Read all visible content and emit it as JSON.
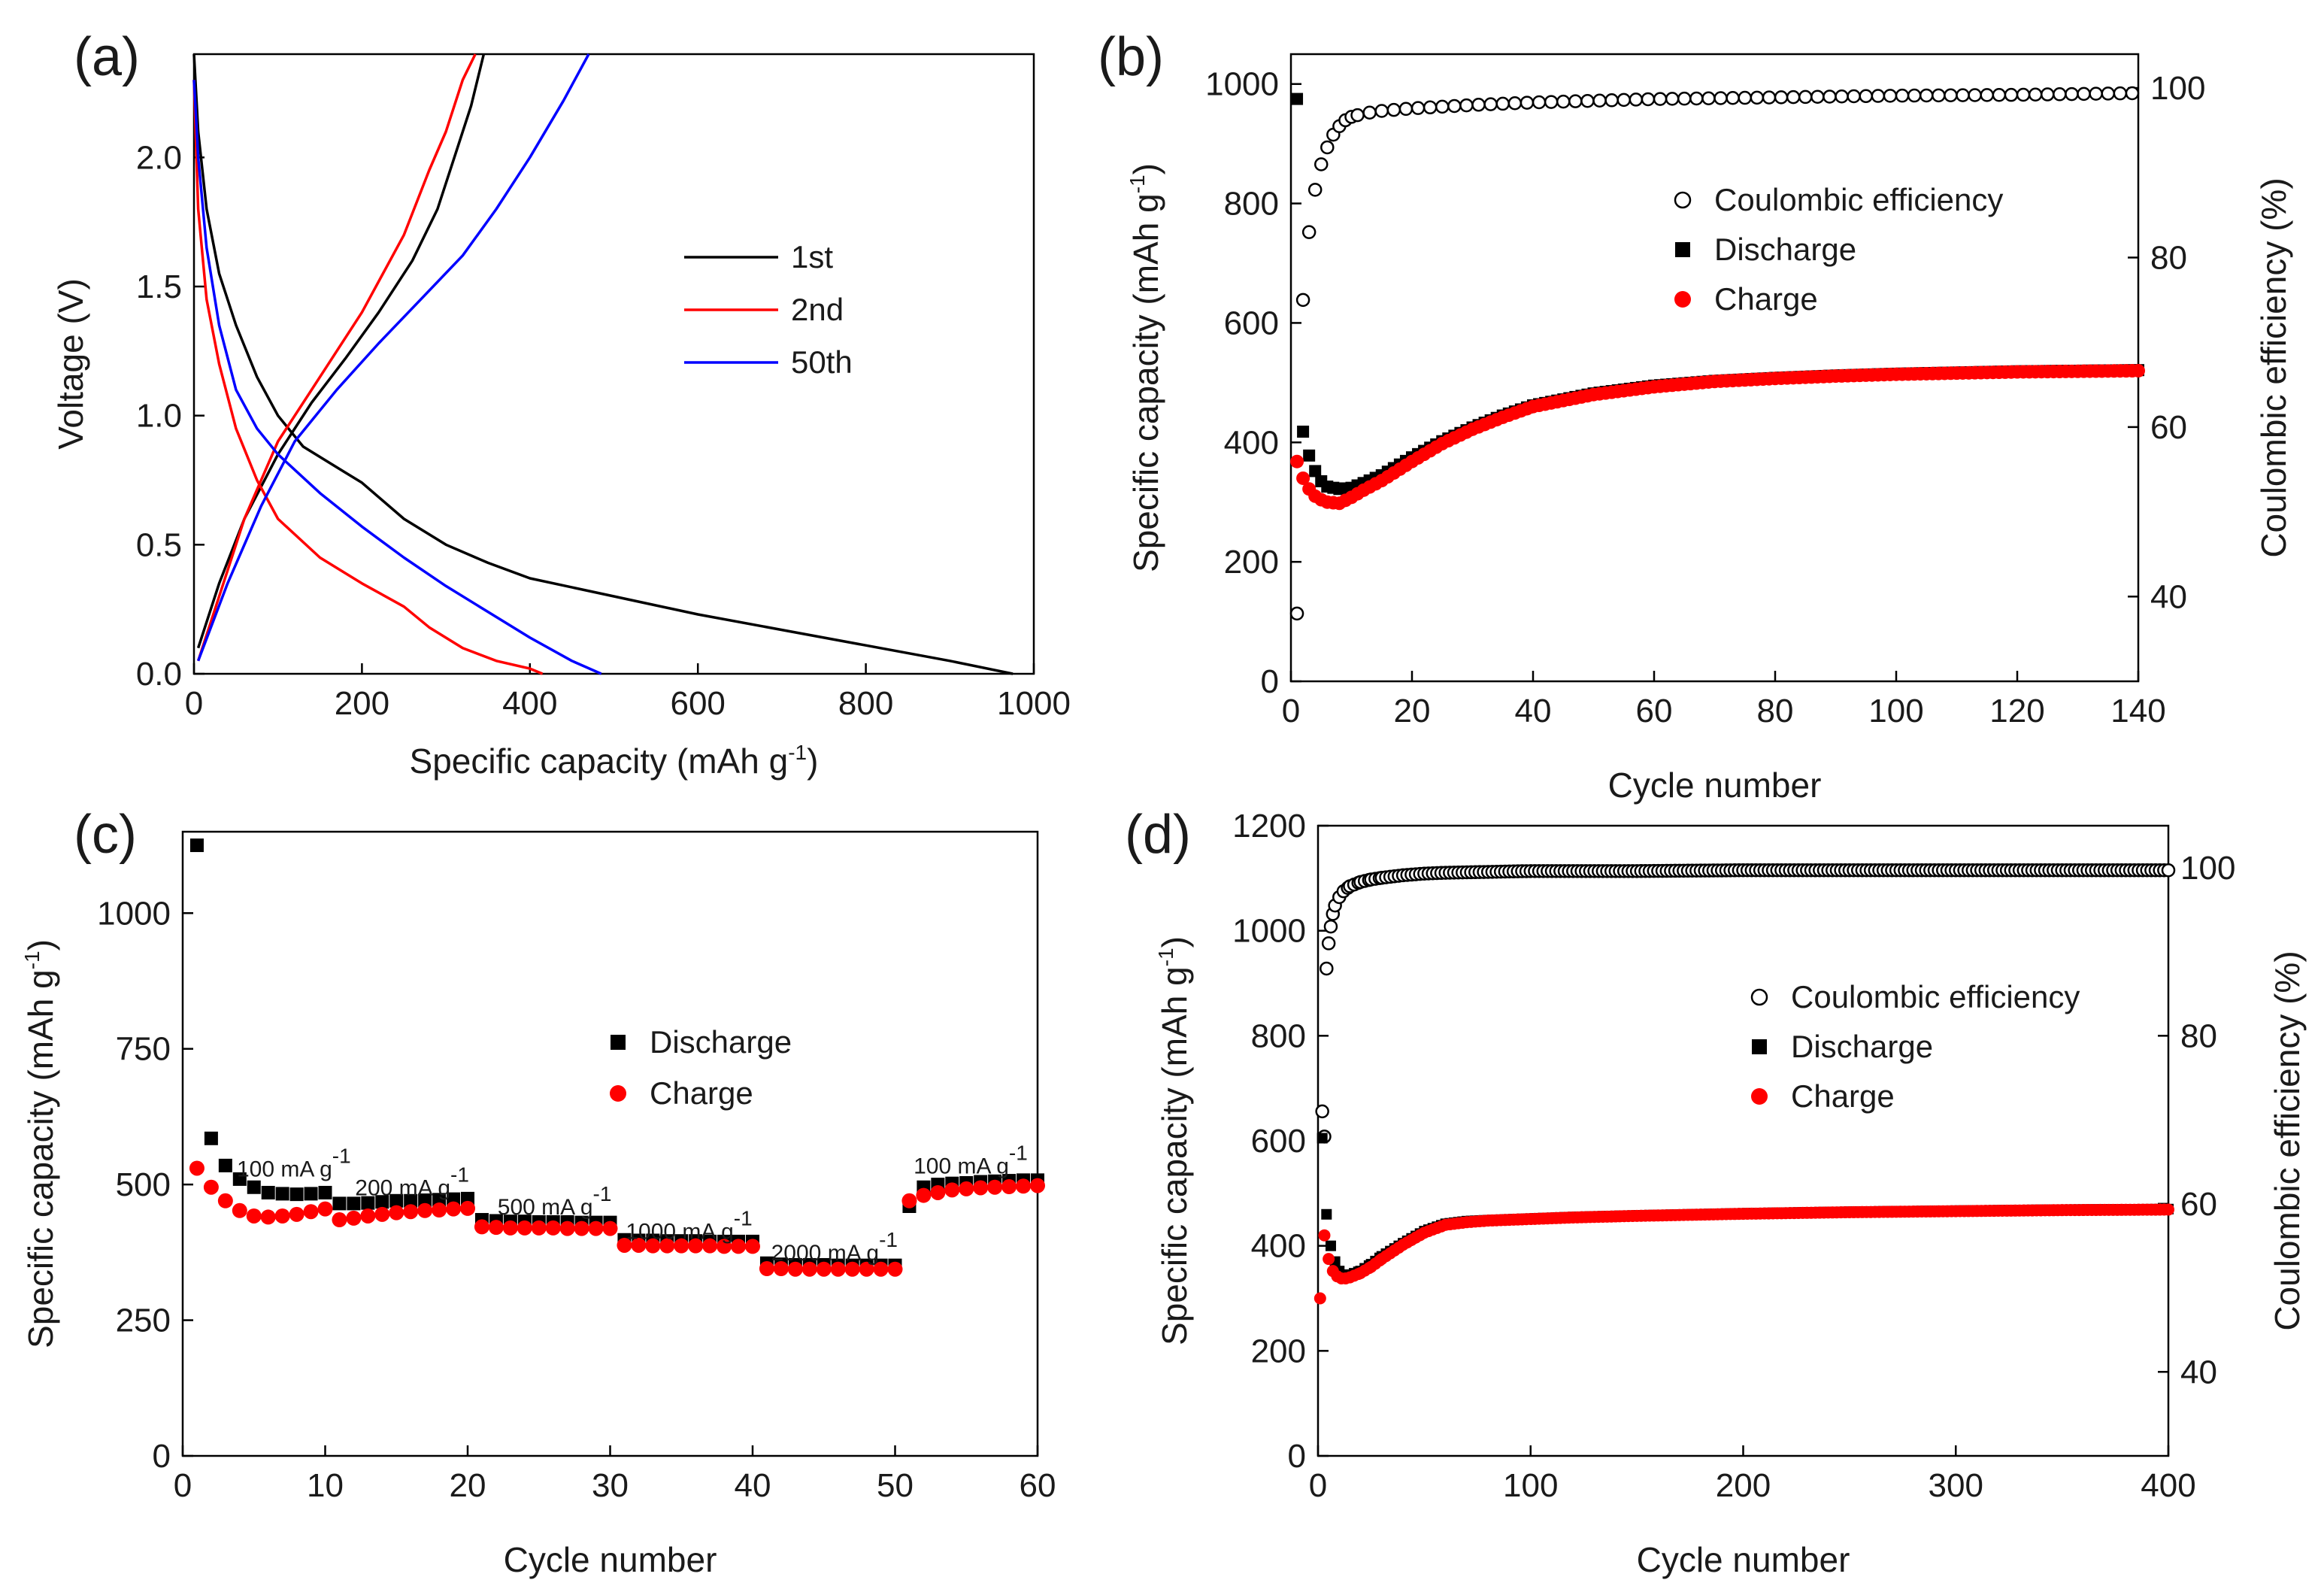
{
  "chart_data": [
    {
      "panel": "(a)",
      "type": "line",
      "xlabel": "Specific capacity (mAh g",
      "xlabel_sup": "-1",
      "xlabel_end": ")",
      "ylabel": "Voltage (V)",
      "xlim": [
        0,
        1000
      ],
      "ylim": [
        0,
        2.4
      ],
      "xticks": [
        0,
        200,
        400,
        600,
        800,
        1000
      ],
      "yticks": [
        0.0,
        0.5,
        1.0,
        1.5,
        2.0
      ],
      "ytick_labels": [
        "0.0",
        "0.5",
        "1.0",
        "1.5",
        "2.0"
      ],
      "legend_position": "center-right",
      "colors": {
        "1st": "#000000",
        "2nd": "#ff0000",
        "50th": "#0000ff"
      },
      "series": [
        {
          "name": "1st",
          "branch": "discharge",
          "color": "#000000",
          "x": [
            0,
            5,
            15,
            30,
            50,
            75,
            100,
            130,
            160,
            180,
            200,
            250,
            300,
            350,
            400,
            500,
            600,
            700,
            800,
            900,
            975
          ],
          "y": [
            2.4,
            2.1,
            1.8,
            1.55,
            1.35,
            1.15,
            1.0,
            0.88,
            0.82,
            0.78,
            0.74,
            0.6,
            0.5,
            0.43,
            0.37,
            0.3,
            0.23,
            0.17,
            0.11,
            0.05,
            0.0
          ]
        },
        {
          "name": "1st",
          "branch": "charge",
          "color": "#000000",
          "x": [
            5,
            30,
            60,
            100,
            140,
            180,
            220,
            260,
            290,
            310,
            330,
            345
          ],
          "y": [
            0.1,
            0.35,
            0.6,
            0.85,
            1.05,
            1.22,
            1.4,
            1.6,
            1.8,
            2.0,
            2.2,
            2.4
          ]
        },
        {
          "name": "2nd",
          "branch": "discharge",
          "color": "#ff0000",
          "x": [
            0,
            5,
            15,
            30,
            50,
            75,
            100,
            150,
            200,
            250,
            280,
            320,
            360,
            400,
            415
          ],
          "y": [
            2.3,
            1.8,
            1.45,
            1.2,
            0.95,
            0.75,
            0.6,
            0.45,
            0.35,
            0.26,
            0.18,
            0.1,
            0.05,
            0.02,
            0.0
          ]
        },
        {
          "name": "2nd",
          "branch": "charge",
          "color": "#ff0000",
          "x": [
            5,
            30,
            60,
            100,
            150,
            200,
            250,
            280,
            300,
            320,
            335
          ],
          "y": [
            0.05,
            0.3,
            0.6,
            0.9,
            1.15,
            1.4,
            1.7,
            1.95,
            2.1,
            2.3,
            2.4
          ]
        },
        {
          "name": "50th",
          "branch": "discharge",
          "color": "#0000ff",
          "x": [
            0,
            5,
            15,
            30,
            50,
            75,
            100,
            150,
            200,
            250,
            300,
            350,
            400,
            450,
            485
          ],
          "y": [
            2.3,
            2.0,
            1.65,
            1.35,
            1.1,
            0.95,
            0.85,
            0.7,
            0.57,
            0.45,
            0.34,
            0.24,
            0.14,
            0.05,
            0.0
          ]
        },
        {
          "name": "50th",
          "branch": "charge",
          "color": "#0000ff",
          "x": [
            5,
            40,
            80,
            120,
            170,
            220,
            270,
            320,
            360,
            400,
            440,
            470
          ],
          "y": [
            0.05,
            0.35,
            0.65,
            0.9,
            1.1,
            1.28,
            1.45,
            1.62,
            1.8,
            2.0,
            2.22,
            2.4
          ]
        }
      ]
    },
    {
      "panel": "(b)",
      "type": "scatter",
      "xlabel": "Cycle number",
      "ylabel": "Specific capacity (mAh g",
      "ylabel_sup": "-1",
      "ylabel_end": ")",
      "y2label": "Coulombic efficiency (%)",
      "xlim": [
        0,
        140
      ],
      "ylim": [
        0,
        1050
      ],
      "y2lim": [
        30,
        104
      ],
      "xticks": [
        0,
        20,
        40,
        60,
        80,
        100,
        120,
        140
      ],
      "yticks": [
        0,
        200,
        400,
        600,
        800,
        1000
      ],
      "y2ticks": [
        40,
        60,
        80,
        100
      ],
      "legend_position": "upper-right",
      "legend": [
        {
          "label": "Coulombic efficiency",
          "marker": "open-circle",
          "color": "#000000"
        },
        {
          "label": "Discharge",
          "marker": "square",
          "color": "#000000"
        },
        {
          "label": "Charge",
          "marker": "circle",
          "color": "#ff0000"
        }
      ],
      "series": [
        {
          "name": "Discharge",
          "axis": "left",
          "x": [
            1,
            2,
            3,
            4,
            5,
            6,
            8,
            10,
            12,
            15,
            20,
            25,
            30,
            35,
            40,
            50,
            60,
            70,
            80,
            90,
            100,
            110,
            120,
            130,
            140
          ],
          "y": [
            975,
            418,
            378,
            352,
            335,
            326,
            322,
            324,
            332,
            345,
            375,
            402,
            425,
            445,
            462,
            482,
            495,
            503,
            508,
            512,
            515,
            517,
            519,
            520,
            521
          ]
        },
        {
          "name": "Charge",
          "axis": "left",
          "x": [
            1,
            2,
            3,
            4,
            5,
            6,
            8,
            10,
            12,
            15,
            20,
            25,
            30,
            35,
            40,
            50,
            60,
            70,
            80,
            90,
            100,
            110,
            120,
            130,
            140
          ],
          "y": [
            368,
            340,
            322,
            310,
            304,
            300,
            298,
            308,
            320,
            336,
            368,
            398,
            422,
            442,
            460,
            480,
            493,
            502,
            507,
            511,
            514,
            516,
            518,
            519,
            520
          ]
        },
        {
          "name": "Coulombic efficiency",
          "axis": "right",
          "x": [
            1,
            2,
            3,
            4,
            5,
            6,
            7,
            8,
            9,
            10,
            12,
            15,
            20,
            25,
            30,
            40,
            50,
            60,
            80,
            100,
            120,
            140
          ],
          "y": [
            38,
            75,
            83,
            88,
            91,
            93,
            94.5,
            95.5,
            96.2,
            96.6,
            97,
            97.3,
            97.6,
            97.8,
            98,
            98.3,
            98.5,
            98.7,
            98.9,
            99.1,
            99.2,
            99.4
          ]
        }
      ]
    },
    {
      "panel": "(c)",
      "type": "scatter",
      "xlabel": "Cycle number",
      "ylabel": "Specific capacity (mAh g",
      "ylabel_sup": "-1",
      "ylabel_end": ")",
      "xlim": [
        0,
        60
      ],
      "ylim": [
        0,
        1150
      ],
      "xticks": [
        0,
        10,
        20,
        30,
        40,
        50,
        60
      ],
      "yticks": [
        0,
        250,
        500,
        750,
        1000
      ],
      "legend_position": "center",
      "legend": [
        {
          "label": "Discharge",
          "marker": "square",
          "color": "#000000"
        },
        {
          "label": "Charge",
          "marker": "circle",
          "color": "#ff0000"
        }
      ],
      "annotations": [
        {
          "text": "100 mA g",
          "sup": "-1",
          "x": 3.8,
          "y": 515
        },
        {
          "text": "200 mA g",
          "sup": "-1",
          "x": 12.1,
          "y": 480
        },
        {
          "text": "500 mA g",
          "sup": "-1",
          "x": 22.1,
          "y": 445
        },
        {
          "text": "1000 mA g",
          "sup": "-1",
          "x": 31.1,
          "y": 400
        },
        {
          "text": "2000 mA g",
          "sup": "-1",
          "x": 41.3,
          "y": 360
        },
        {
          "text": "100 mA g",
          "sup": "-1",
          "x": 51.3,
          "y": 520
        }
      ],
      "series": [
        {
          "name": "Discharge",
          "x": [
            1,
            2,
            3,
            4,
            5,
            6,
            7,
            8,
            9,
            10,
            11,
            12,
            13,
            14,
            15,
            16,
            17,
            18,
            19,
            20,
            21,
            22,
            23,
            24,
            25,
            26,
            27,
            28,
            29,
            30,
            31,
            32,
            33,
            34,
            35,
            36,
            37,
            38,
            39,
            40,
            41,
            42,
            43,
            44,
            45,
            46,
            47,
            48,
            49,
            50,
            51,
            52,
            53,
            54,
            55,
            56,
            57,
            58,
            59,
            60
          ],
          "y": [
            1125,
            585,
            535,
            510,
            495,
            485,
            483,
            482,
            483,
            485,
            465,
            465,
            466,
            468,
            470,
            470,
            471,
            472,
            473,
            474,
            435,
            433,
            432,
            432,
            431,
            431,
            431,
            430,
            430,
            430,
            398,
            397,
            397,
            396,
            396,
            396,
            395,
            395,
            395,
            395,
            355,
            353,
            352,
            352,
            352,
            351,
            351,
            351,
            351,
            351,
            460,
            495,
            500,
            502,
            503,
            505,
            506,
            507,
            508,
            508
          ]
        },
        {
          "name": "Charge",
          "x": [
            1,
            2,
            3,
            4,
            5,
            6,
            7,
            8,
            9,
            10,
            11,
            12,
            13,
            14,
            15,
            16,
            17,
            18,
            19,
            20,
            21,
            22,
            23,
            24,
            25,
            26,
            27,
            28,
            29,
            30,
            31,
            32,
            33,
            34,
            35,
            36,
            37,
            38,
            39,
            40,
            41,
            42,
            43,
            44,
            45,
            46,
            47,
            48,
            49,
            50,
            51,
            52,
            53,
            54,
            55,
            56,
            57,
            58,
            59,
            60
          ],
          "y": [
            530,
            495,
            470,
            452,
            442,
            440,
            442,
            445,
            450,
            455,
            435,
            438,
            442,
            445,
            448,
            450,
            452,
            453,
            455,
            456,
            422,
            421,
            420,
            420,
            420,
            420,
            419,
            419,
            419,
            419,
            388,
            388,
            387,
            387,
            387,
            387,
            387,
            386,
            386,
            386,
            345,
            345,
            344,
            344,
            344,
            344,
            344,
            344,
            344,
            344,
            470,
            480,
            485,
            490,
            492,
            494,
            495,
            496,
            497,
            498
          ]
        }
      ]
    },
    {
      "panel": "(d)",
      "type": "scatter",
      "xlabel": "Cycle number",
      "ylabel": "Specific capacity (mAh g",
      "ylabel_sup": "-1",
      "ylabel_end": ")",
      "y2label": "Coulombic efficiency (%)",
      "xlim": [
        0,
        400
      ],
      "ylim": [
        0,
        1200
      ],
      "y2lim": [
        30,
        105
      ],
      "xticks": [
        0,
        100,
        200,
        300,
        400
      ],
      "yticks": [
        0,
        200,
        400,
        600,
        800,
        1000,
        1200
      ],
      "y2ticks": [
        40,
        60,
        80,
        100
      ],
      "legend_position": "center-right",
      "legend": [
        {
          "label": "Coulombic efficiency",
          "marker": "open-circle",
          "color": "#000000"
        },
        {
          "label": "Discharge",
          "marker": "square",
          "color": "#000000"
        },
        {
          "label": "Charge",
          "marker": "circle",
          "color": "#ff0000"
        }
      ],
      "series": [
        {
          "name": "Discharge",
          "axis": "left",
          "x": [
            2,
            4,
            6,
            8,
            10,
            12,
            15,
            20,
            25,
            30,
            40,
            50,
            60,
            70,
            80,
            100,
            120,
            150,
            200,
            250,
            300,
            350,
            400
          ],
          "y": [
            605,
            460,
            400,
            370,
            352,
            345,
            345,
            352,
            365,
            380,
            405,
            428,
            442,
            447,
            449,
            452,
            455,
            458,
            462,
            465,
            467,
            469,
            470
          ]
        },
        {
          "name": "Charge",
          "axis": "left",
          "x": [
            1,
            3,
            5,
            7,
            9,
            11,
            13,
            15,
            20,
            25,
            30,
            40,
            50,
            60,
            70,
            80,
            100,
            120,
            150,
            200,
            250,
            300,
            350,
            400
          ],
          "y": [
            300,
            420,
            375,
            352,
            342,
            338,
            338,
            340,
            348,
            360,
            375,
            402,
            425,
            440,
            445,
            448,
            451,
            454,
            457,
            461,
            464,
            466,
            468,
            469
          ]
        },
        {
          "name": "Coulombic efficiency",
          "axis": "right",
          "x": [
            2,
            3,
            4,
            5,
            6,
            7,
            8,
            10,
            12,
            15,
            20,
            25,
            30,
            40,
            50,
            60,
            80,
            100,
            150,
            200,
            250,
            300,
            350,
            400
          ],
          "y": [
            71,
            68,
            88,
            91,
            93,
            94.5,
            95.5,
            96.5,
            97.2,
            97.8,
            98.3,
            98.6,
            98.8,
            99.1,
            99.3,
            99.4,
            99.5,
            99.6,
            99.6,
            99.7,
            99.7,
            99.7,
            99.7,
            99.7
          ]
        }
      ]
    }
  ]
}
